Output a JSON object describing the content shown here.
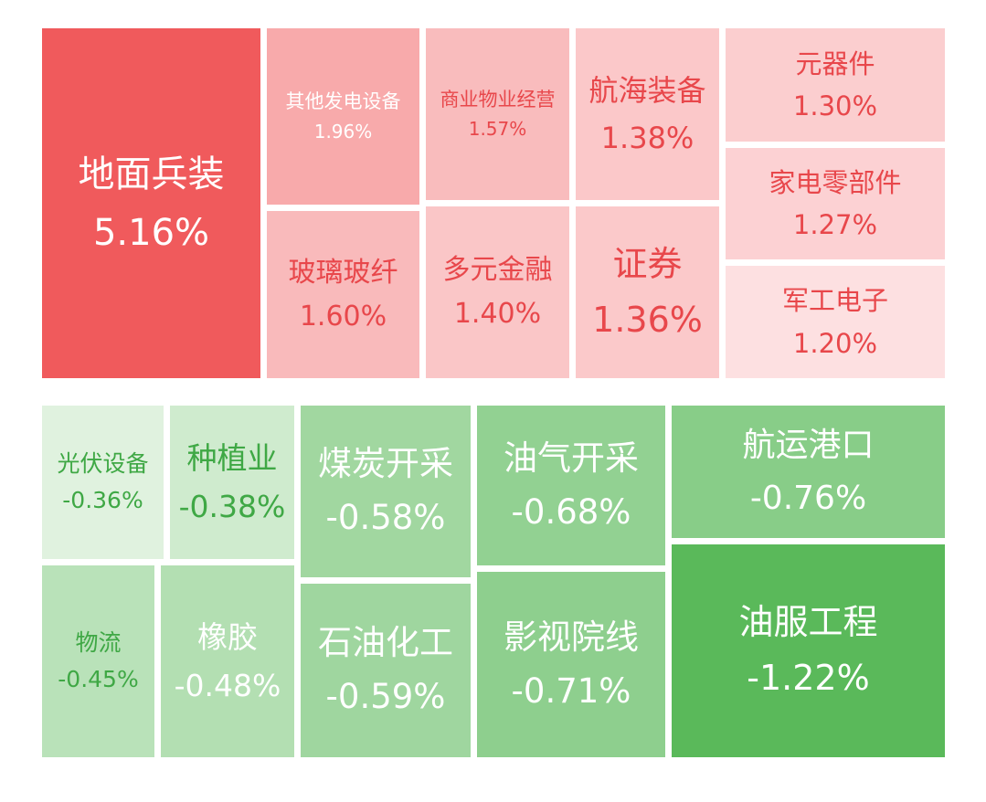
{
  "chart_data": {
    "type": "treemap",
    "title": "",
    "groups": [
      {
        "name": "",
        "sign": "positive",
        "items": [
          {
            "label": "地面兵装",
            "value": 5.16,
            "text": "5.16%"
          },
          {
            "label": "其他发电设备",
            "value": 1.96,
            "text": "1.96%"
          },
          {
            "label": "商业物业经营",
            "value": 1.57,
            "text": "1.57%"
          },
          {
            "label": "航海装备",
            "value": 1.38,
            "text": "1.38%"
          },
          {
            "label": "元器件",
            "value": 1.3,
            "text": "1.30%"
          },
          {
            "label": "玻璃玻纤",
            "value": 1.6,
            "text": "1.60%"
          },
          {
            "label": "多元金融",
            "value": 1.4,
            "text": "1.40%"
          },
          {
            "label": "证券",
            "value": 1.36,
            "text": "1.36%"
          },
          {
            "label": "家电零部件",
            "value": 1.27,
            "text": "1.27%"
          },
          {
            "label": "军工电子",
            "value": 1.2,
            "text": "1.20%"
          }
        ]
      },
      {
        "name": "",
        "sign": "negative",
        "items": [
          {
            "label": "光伏设备",
            "value": -0.36,
            "text": "-0.36%"
          },
          {
            "label": "种植业",
            "value": -0.38,
            "text": "-0.38%"
          },
          {
            "label": "煤炭开采",
            "value": -0.58,
            "text": "-0.58%"
          },
          {
            "label": "油气开采",
            "value": -0.68,
            "text": "-0.68%"
          },
          {
            "label": "航运港口",
            "value": -0.76,
            "text": "-0.76%"
          },
          {
            "label": "物流",
            "value": -0.45,
            "text": "-0.45%"
          },
          {
            "label": "橡胶",
            "value": -0.48,
            "text": "-0.48%"
          },
          {
            "label": "石油化工",
            "value": -0.59,
            "text": "-0.59%"
          },
          {
            "label": "影视院线",
            "value": -0.71,
            "text": "-0.71%"
          },
          {
            "label": "油服工程",
            "value": -1.22,
            "text": "-1.22%"
          }
        ]
      }
    ],
    "colors": {
      "positive_strong": "#f05a5c",
      "positive_light": "#fde0e1",
      "negative_strong": "#5ab95a",
      "negative_light": "#e0f2df",
      "text_on_strong": "#ffffff",
      "text_red": "#e8474b",
      "text_green": "#3fa845"
    }
  }
}
